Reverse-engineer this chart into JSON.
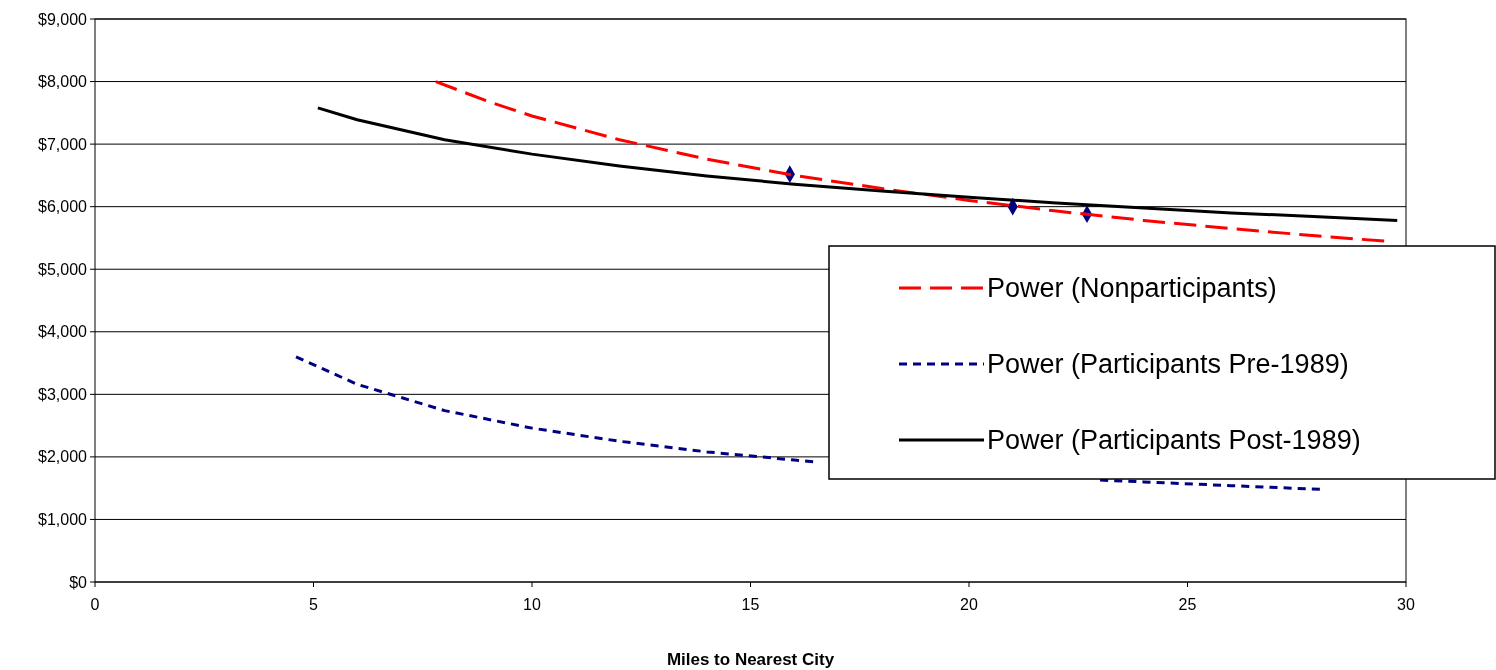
{
  "chart_data": {
    "type": "line",
    "xlabel": "Miles to Nearest City",
    "xlim": [
      0,
      30
    ],
    "xticks": [
      0,
      5,
      10,
      15,
      20,
      25,
      30
    ],
    "ylim": [
      0,
      9000
    ],
    "yticks": [
      {
        "value": 0,
        "label": "$0"
      },
      {
        "value": 1000,
        "label": "$1,000"
      },
      {
        "value": 2000,
        "label": "$2,000"
      },
      {
        "value": 3000,
        "label": "$3,000"
      },
      {
        "value": 4000,
        "label": "$4,000"
      },
      {
        "value": 5000,
        "label": "$5,000"
      },
      {
        "value": 6000,
        "label": "$6,000"
      },
      {
        "value": 7000,
        "label": "$7,000"
      },
      {
        "value": 8000,
        "label": "$8,000"
      },
      {
        "value": 9000,
        "label": "$9,000"
      }
    ],
    "grid": "y",
    "legend": "right",
    "series": [
      {
        "name": "Power (Nonparticipants)",
        "color": "#ff0000",
        "line_style": "dashed",
        "x": [
          7.8,
          9,
          10,
          12,
          14,
          16,
          18,
          20,
          22,
          24,
          26,
          28,
          29.5
        ],
        "values": [
          8000,
          7680,
          7450,
          7070,
          6760,
          6500,
          6290,
          6100,
          5930,
          5780,
          5650,
          5530,
          5450
        ]
      },
      {
        "name": "Power (Participants Pre-1989)",
        "color": "#000080",
        "line_style": "dotted",
        "x": [
          4.6,
          6,
          8,
          10,
          12,
          14,
          16,
          16.5,
          20,
          23,
          24,
          26,
          28.1
        ],
        "values": [
          3600,
          3160,
          2740,
          2460,
          2250,
          2080,
          1950,
          1920,
          null,
          1630,
          1600,
          1540,
          1480
        ]
      },
      {
        "name": "Power (Participants Post-1989)",
        "color": "#000000",
        "line_style": "solid",
        "x": [
          5.1,
          6,
          8,
          10,
          12,
          14,
          16,
          18,
          20,
          22,
          24,
          26,
          28,
          29.8
        ],
        "values": [
          7580,
          7390,
          7070,
          6840,
          6650,
          6490,
          6360,
          6250,
          6150,
          6060,
          5980,
          5900,
          5840,
          5780
        ]
      },
      {
        "type": "scatter",
        "marker": "diamond",
        "color": "#000080",
        "x": [
          15.9,
          21,
          22.7
        ],
        "values": [
          6520,
          6000,
          5880
        ]
      }
    ]
  }
}
